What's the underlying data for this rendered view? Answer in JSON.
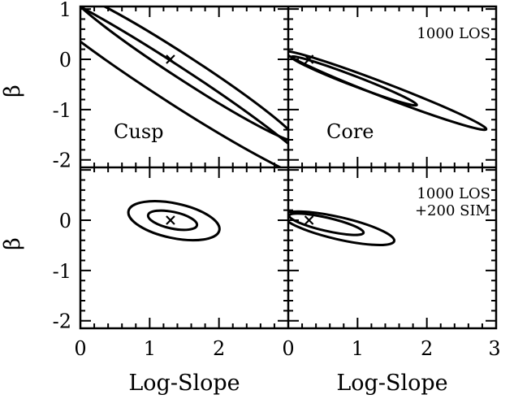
{
  "chart_data": {
    "type": "contour",
    "xlabel": "Log-Slope",
    "ylabel": "β",
    "xlim_left": [
      0,
      3
    ],
    "xlim_right": [
      0,
      3
    ],
    "ylim": [
      -2.15,
      1.05
    ],
    "x_ticks_left": [
      "0",
      "1",
      "2"
    ],
    "x_ticks_right": [
      "0",
      "1",
      "2",
      "3"
    ],
    "y_ticks_top": [
      "1",
      "0",
      "-1",
      "-2"
    ],
    "y_ticks_bottom": [
      "0",
      "-1",
      "-2"
    ],
    "panels": [
      {
        "id": "top-left",
        "label": "Cusp",
        "annotation": [],
        "marker": [
          1.3,
          0.0
        ],
        "contours": [
          {
            "cx": 1.49,
            "cy": -0.16,
            "rx": 1.94,
            "ry": 0.17,
            "angle_deg": 33
          },
          {
            "cx": 1.3,
            "cy": -0.45,
            "rx": 2.65,
            "ry": 0.26,
            "angle_deg": 33
          }
        ]
      },
      {
        "id": "top-right",
        "label": "Core",
        "annotation": [
          "1000 LOS"
        ],
        "marker": [
          0.3,
          0.0
        ],
        "contours": [
          {
            "cx": 0.95,
            "cy": -0.43,
            "rx": 0.97,
            "ry": 0.07,
            "angle_deg": 21
          },
          {
            "cx": 1.4,
            "cy": -0.62,
            "rx": 1.56,
            "ry": 0.1,
            "angle_deg": 21
          }
        ]
      },
      {
        "id": "bottom-left",
        "label": "",
        "annotation": [
          "1000 LOS",
          "+200 SIM"
        ],
        "marker": [
          1.3,
          0.0
        ],
        "contours": [
          {
            "cx": 1.33,
            "cy": 0.0,
            "rx": 0.36,
            "ry": 0.12,
            "angle_deg": 12
          },
          {
            "cx": 1.35,
            "cy": -0.01,
            "rx": 0.67,
            "ry": 0.25,
            "angle_deg": 12
          }
        ]
      },
      {
        "id": "bottom-right",
        "label": "",
        "annotation": [],
        "marker": [
          0.3,
          0.0
        ],
        "contours": [
          {
            "cx": 0.55,
            "cy": -0.08,
            "rx": 0.55,
            "ry": 0.095,
            "angle_deg": 13
          },
          {
            "cx": 0.73,
            "cy": -0.16,
            "rx": 0.82,
            "ry": 0.16,
            "angle_deg": 13
          }
        ]
      }
    ]
  }
}
